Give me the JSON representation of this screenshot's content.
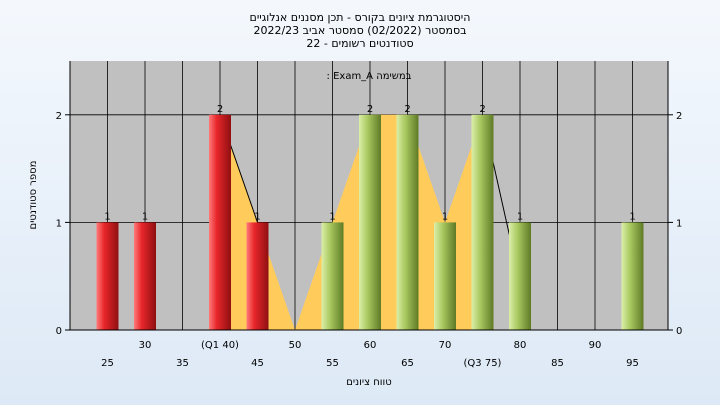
{
  "chart_data": {
    "type": "bar",
    "title_lines": [
      "היסטוגרמת ציונים בקורס - תכן מסננים אנלוגיים",
      "בסמסטר  (02/2022)  סמסטר אביב 2022/23",
      "סטודנטים רשומים - 22"
    ],
    "annotation": ": Exam_A במשימה",
    "xlabel": "טווח ציונים",
    "ylabel": "מספר סטודנטים",
    "ylim": [
      0,
      2.5
    ],
    "yticks": [
      0,
      1,
      2
    ],
    "x_tick_labels": [
      "25",
      "30",
      "35",
      "(Q1 40)",
      "45",
      "50",
      "55",
      "60",
      "65",
      "70",
      "(Q3 75)",
      "80",
      "85",
      "90",
      "95"
    ],
    "bars": [
      {
        "x": 25,
        "value": 1,
        "label": "1"
      },
      {
        "x": 30,
        "value": 1,
        "label": "1"
      },
      {
        "x": 40,
        "value": 2,
        "label": "2"
      },
      {
        "x": 45,
        "value": 1,
        "label": "1"
      },
      {
        "x": 55,
        "value": 1,
        "label": "1"
      },
      {
        "x": 60,
        "value": 2,
        "label": "2"
      },
      {
        "x": 65,
        "value": 2,
        "label": "2"
      },
      {
        "x": 70,
        "value": 1,
        "label": "1"
      },
      {
        "x": 75,
        "value": 2,
        "label": "2"
      },
      {
        "x": 80,
        "value": 1,
        "label": "1"
      },
      {
        "x": 95,
        "value": 1,
        "label": "1"
      }
    ],
    "red_threshold": 45,
    "interquartile_range": [
      40,
      75
    ],
    "grid": true,
    "colors": {
      "plot_bg": "#c0c0c0",
      "area_fill": "#ffcc5c",
      "red_bar": "#e8262a",
      "green_bar": "#a8c860",
      "grid": "#000000"
    }
  }
}
